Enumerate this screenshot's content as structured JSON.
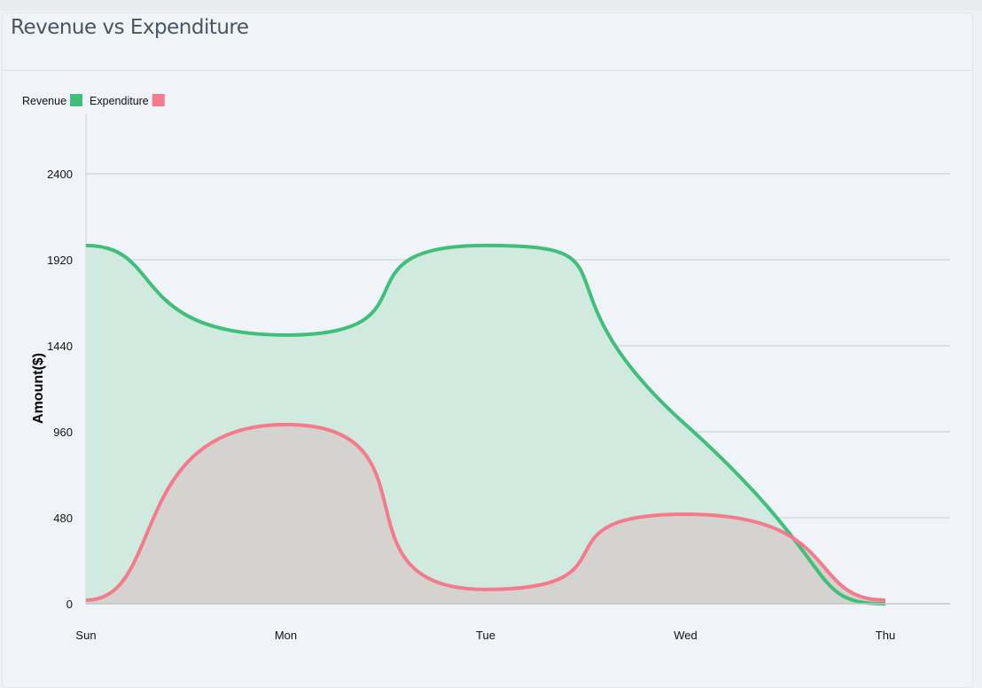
{
  "card": {
    "title": "Revenue vs Expenditure"
  },
  "chart_data": {
    "type": "area",
    "title": "",
    "xlabel": "",
    "ylabel": "Amount($)",
    "categories": [
      "Sun",
      "Mon",
      "Tue",
      "Wed",
      "Thu"
    ],
    "ylim": [
      0,
      2400
    ],
    "yticks": [
      "0",
      "480",
      "960",
      "1440",
      "1920",
      "2400"
    ],
    "grid": true,
    "legend_position": "top-left",
    "series": [
      {
        "name": "Revenue",
        "values": [
          2000,
          1500,
          2000,
          1000,
          0
        ],
        "color": "#3fbf7a",
        "fill": "#d0eae0"
      },
      {
        "name": "Expenditure",
        "values": [
          20,
          1000,
          80,
          500,
          20
        ],
        "color": "#f57a8c",
        "fill": "#d4d3cf"
      }
    ]
  }
}
